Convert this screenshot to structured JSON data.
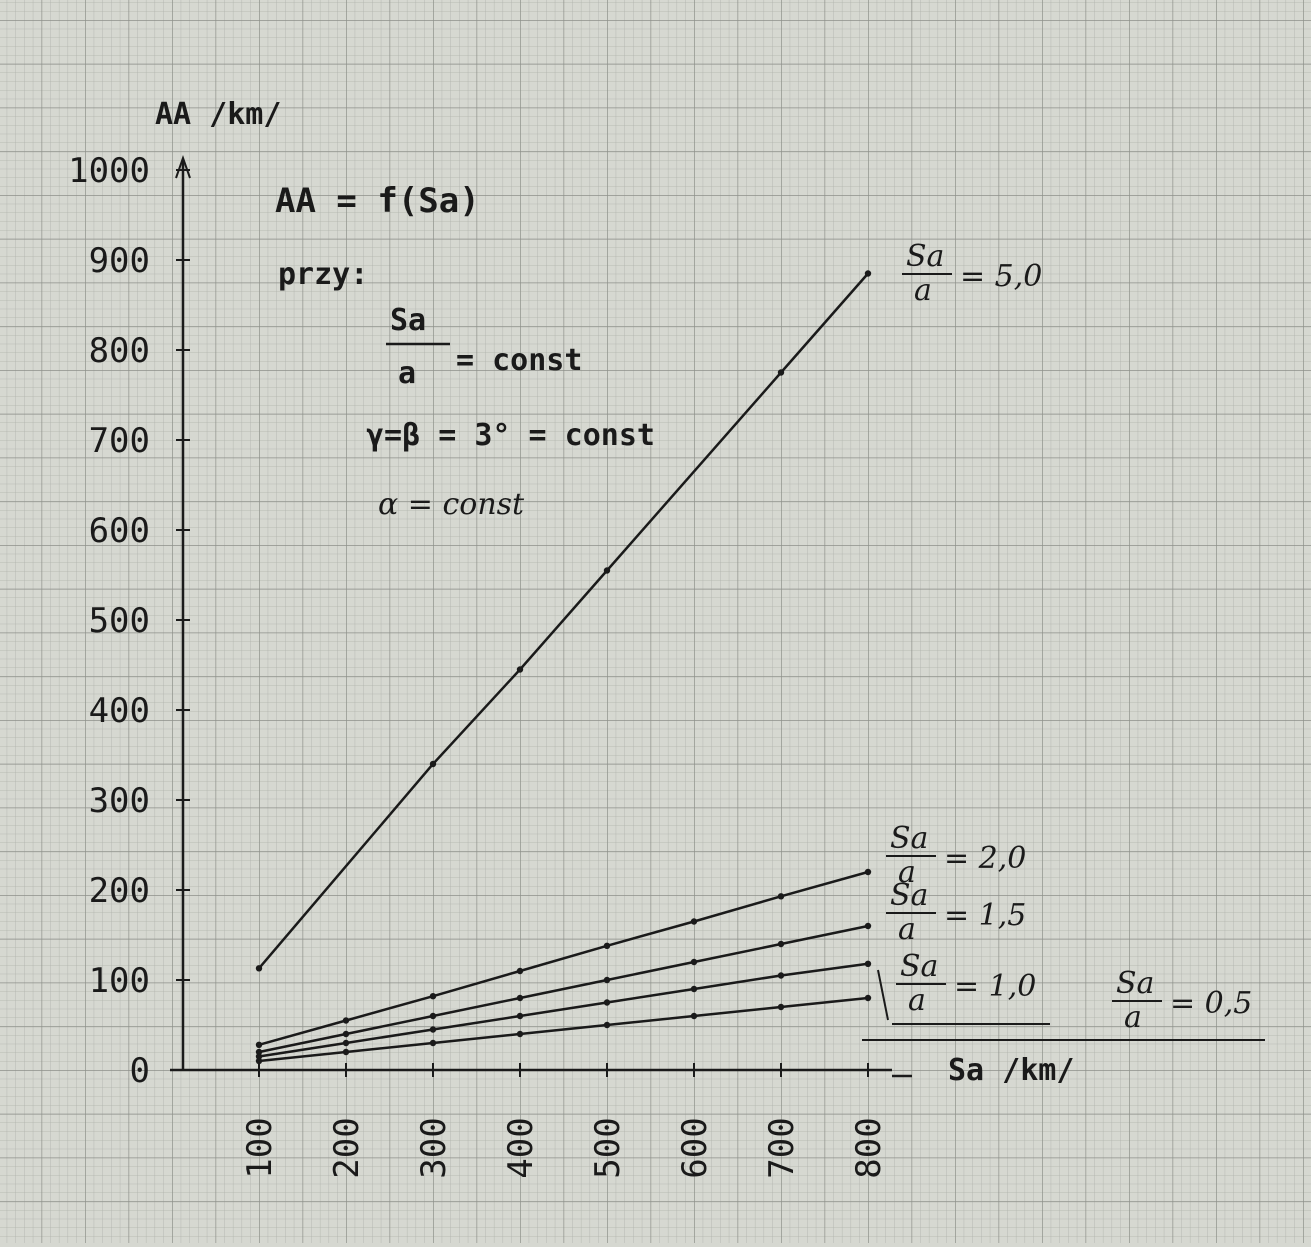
{
  "chart_data": {
    "type": "line",
    "title": "AA = f(Sa)",
    "xlabel": "Sa /km/",
    "ylabel": "AA /km/",
    "xlim": [
      0,
      800
    ],
    "ylim": [
      0,
      1000
    ],
    "grid": true,
    "x_ticks": [
      "100",
      "200",
      "300",
      "400",
      "500",
      "600",
      "700",
      "800"
    ],
    "y_ticks": [
      "0",
      "100",
      "200",
      "300",
      "400",
      "500",
      "600",
      "700",
      "800",
      "900",
      "1000"
    ],
    "conditions": {
      "prefix": "przy:",
      "ratio_num": "Sa",
      "ratio_den": "a",
      "ratio_suffix": "= const",
      "angles": "γ=β = 3° = const",
      "alpha": "α = const"
    },
    "series": [
      {
        "name": "Sa/a = 5,0",
        "label_value": "5,0",
        "x": [
          100,
          300,
          400,
          500,
          700,
          800
        ],
        "y": [
          113,
          340,
          445,
          555,
          775,
          885
        ]
      },
      {
        "name": "Sa/a = 2,0",
        "label_value": "2,0",
        "x": [
          100,
          200,
          300,
          400,
          500,
          600,
          700,
          800
        ],
        "y": [
          28,
          55,
          82,
          110,
          138,
          165,
          193,
          220
        ]
      },
      {
        "name": "Sa/a = 1,5",
        "label_value": "1,5",
        "x": [
          100,
          200,
          300,
          400,
          500,
          600,
          700,
          800
        ],
        "y": [
          20,
          40,
          60,
          80,
          100,
          120,
          140,
          160
        ]
      },
      {
        "name": "Sa/a = 1,0",
        "label_value": "1,0",
        "x": [
          100,
          200,
          300,
          400,
          500,
          600,
          700,
          800
        ],
        "y": [
          15,
          30,
          45,
          60,
          75,
          90,
          105,
          118
        ]
      },
      {
        "name": "Sa/a = 0,5",
        "label_value": "0,5",
        "x": [
          100,
          200,
          300,
          400,
          500,
          600,
          700,
          800
        ],
        "y": [
          10,
          20,
          30,
          40,
          50,
          60,
          70,
          80
        ]
      }
    ]
  },
  "colors": {
    "paper": "#d6d8d1",
    "grid_fine": "#aeb1aa",
    "grid_major": "#8d908a",
    "ink": "#1a1a1a"
  }
}
